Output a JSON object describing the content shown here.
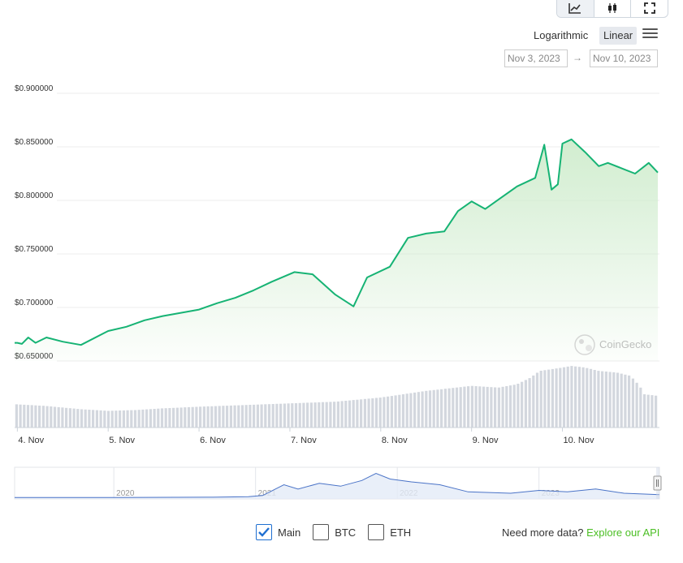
{
  "toolbar": {
    "scale_log_label": "Logarithmic",
    "scale_linear_label": "Linear",
    "date_from": "Nov 3, 2023",
    "date_arrow": "→",
    "date_to": "Nov 10, 2023"
  },
  "watermark": "CoinGecko",
  "footer": {
    "series_toggles": [
      {
        "label": "Main",
        "checked": true
      },
      {
        "label": "BTC",
        "checked": false
      },
      {
        "label": "ETH",
        "checked": false
      }
    ],
    "api_prompt": "Need more data?",
    "api_link": "Explore our API"
  },
  "colors": {
    "price_line": "#16b374",
    "area_top": "#cfeccd",
    "volume_bar": "#d3d7de",
    "navigator_line": "#4a73c7",
    "accent_link": "#4bbf24",
    "checkbox_checked": "#1f6fd1"
  },
  "chart_data": {
    "type": "line",
    "y_tick_labels": [
      "$0.900000",
      "$0.850000",
      "$0.800000",
      "$0.750000",
      "$0.700000",
      "$0.650000"
    ],
    "y_ticks": [
      0.9,
      0.85,
      0.8,
      0.75,
      0.7,
      0.65
    ],
    "ylim": [
      0.65,
      0.9
    ],
    "x_tick_labels": [
      "4. Nov",
      "5. Nov",
      "6. Nov",
      "7. Nov",
      "8. Nov",
      "9. Nov",
      "10. Nov"
    ],
    "x_ticks": [
      1,
      2,
      3,
      4,
      5,
      6,
      7
    ],
    "xlim": [
      0.97,
      8.05
    ],
    "price": [
      [
        0.97,
        0.667
      ],
      [
        1.0,
        0.667
      ],
      [
        1.05,
        0.666
      ],
      [
        1.12,
        0.672
      ],
      [
        1.2,
        0.667
      ],
      [
        1.32,
        0.672
      ],
      [
        1.5,
        0.668
      ],
      [
        1.7,
        0.665
      ],
      [
        2.0,
        0.678
      ],
      [
        2.2,
        0.682
      ],
      [
        2.4,
        0.688
      ],
      [
        2.6,
        0.692
      ],
      [
        2.8,
        0.695
      ],
      [
        3.0,
        0.698
      ],
      [
        3.2,
        0.704
      ],
      [
        3.4,
        0.709
      ],
      [
        3.6,
        0.716
      ],
      [
        3.8,
        0.724
      ],
      [
        4.05,
        0.733
      ],
      [
        4.25,
        0.731
      ],
      [
        4.5,
        0.712
      ],
      [
        4.7,
        0.701
      ],
      [
        4.85,
        0.728
      ],
      [
        5.1,
        0.738
      ],
      [
        5.3,
        0.765
      ],
      [
        5.5,
        0.769
      ],
      [
        5.7,
        0.771
      ],
      [
        5.85,
        0.79
      ],
      [
        6.0,
        0.799
      ],
      [
        6.15,
        0.792
      ],
      [
        6.3,
        0.801
      ],
      [
        6.5,
        0.813
      ],
      [
        6.7,
        0.821
      ],
      [
        6.8,
        0.852
      ],
      [
        6.88,
        0.81
      ],
      [
        6.95,
        0.815
      ],
      [
        7.0,
        0.853
      ],
      [
        7.1,
        0.857
      ],
      [
        7.25,
        0.845
      ],
      [
        7.4,
        0.832
      ],
      [
        7.5,
        0.835
      ],
      [
        7.65,
        0.83
      ],
      [
        7.8,
        0.825
      ],
      [
        7.95,
        0.835
      ],
      [
        8.05,
        0.826
      ]
    ],
    "volume": [
      [
        0.97,
        14
      ],
      [
        1.3,
        13
      ],
      [
        1.7,
        11
      ],
      [
        2.0,
        10
      ],
      [
        2.3,
        10.5
      ],
      [
        2.6,
        11.5
      ],
      [
        3.0,
        12.5
      ],
      [
        3.5,
        13.5
      ],
      [
        4.0,
        14.5
      ],
      [
        4.5,
        15.5
      ],
      [
        5.0,
        18
      ],
      [
        5.5,
        22
      ],
      [
        6.0,
        25
      ],
      [
        6.3,
        24
      ],
      [
        6.5,
        26
      ],
      [
        6.65,
        30
      ],
      [
        6.75,
        34
      ],
      [
        7.0,
        36
      ],
      [
        7.1,
        37
      ],
      [
        7.25,
        36
      ],
      [
        7.4,
        34
      ],
      [
        7.6,
        33
      ],
      [
        7.75,
        31
      ],
      [
        7.85,
        25
      ],
      [
        7.9,
        20
      ],
      [
        8.05,
        19
      ]
    ],
    "volume_max": 38,
    "navigator": {
      "x_labels": [
        "2020",
        "2021",
        "2022",
        "2023"
      ],
      "x_ticks": [
        2020,
        2021,
        2022,
        2023
      ],
      "xlim": [
        2019.3,
        2023.85
      ],
      "ylim": [
        0,
        1
      ],
      "series": [
        [
          2019.3,
          0.05
        ],
        [
          2020.0,
          0.05
        ],
        [
          2020.7,
          0.06
        ],
        [
          2020.95,
          0.08
        ],
        [
          2021.05,
          0.12
        ],
        [
          2021.2,
          0.5
        ],
        [
          2021.3,
          0.35
        ],
        [
          2021.45,
          0.55
        ],
        [
          2021.6,
          0.45
        ],
        [
          2021.75,
          0.65
        ],
        [
          2021.85,
          0.9
        ],
        [
          2021.95,
          0.7
        ],
        [
          2022.1,
          0.6
        ],
        [
          2022.3,
          0.5
        ],
        [
          2022.5,
          0.25
        ],
        [
          2022.8,
          0.2
        ],
        [
          2023.0,
          0.3
        ],
        [
          2023.2,
          0.25
        ],
        [
          2023.4,
          0.35
        ],
        [
          2023.6,
          0.2
        ],
        [
          2023.85,
          0.15
        ]
      ]
    }
  }
}
